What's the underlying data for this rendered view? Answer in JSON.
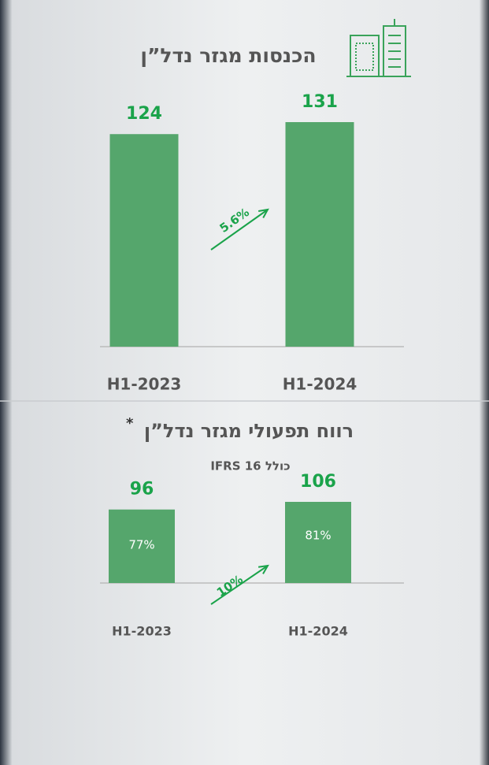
{
  "chart_data": [
    {
      "type": "bar",
      "title": "הכנסות מגזר נדל”ן",
      "categories": [
        "H1-2023",
        "H1-2024"
      ],
      "values": [
        124,
        131
      ],
      "color": "#55a66c",
      "growth_label": "5.6%"
    },
    {
      "type": "bar",
      "title": "רווח תפעולי מגזר נדל”ן",
      "title_note": "*",
      "subtitle": "כולל IFRS 16",
      "categories": [
        "H1-2023",
        "H1-2024"
      ],
      "values": [
        96,
        106
      ],
      "color": "#55a66c",
      "inner_labels": [
        "77%",
        "81%"
      ],
      "growth_label": "10%"
    }
  ]
}
